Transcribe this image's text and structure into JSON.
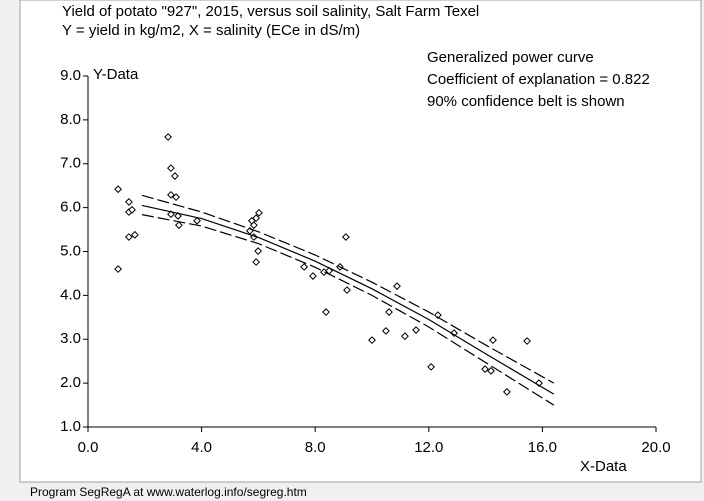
{
  "chart_data": {
    "type": "scatter",
    "title": "Yield of potato \"927\", 2015, versus soil salinity, Salt Farm Texel",
    "subtitle": "Y = yield in kg/m2,  X = salinity (ECe in dS/m)",
    "annotations": [
      "Generalized power curve",
      "Coefficient of explanation = 0.822",
      "90% confidence belt is shown"
    ],
    "x_label": "X-Data",
    "y_label": "Y-Data",
    "footer": "Program SegRegA at www.waterlog.info/segreg.htm",
    "xlim": [
      0,
      20
    ],
    "ylim": [
      1,
      9
    ],
    "xticks": [
      {
        "value": 0,
        "label": "0.0"
      },
      {
        "value": 4,
        "label": "4.0"
      },
      {
        "value": 8,
        "label": "8.0"
      },
      {
        "value": 12,
        "label": "12.0"
      },
      {
        "value": 16,
        "label": "16.0"
      },
      {
        "value": 20,
        "label": "20.0"
      }
    ],
    "yticks": [
      {
        "value": 1,
        "label": "1.0"
      },
      {
        "value": 2,
        "label": "2.0"
      },
      {
        "value": 3,
        "label": "3.0"
      },
      {
        "value": 4,
        "label": "4.0"
      },
      {
        "value": 5,
        "label": "5.0"
      },
      {
        "value": 6,
        "label": "6.0"
      },
      {
        "value": 7,
        "label": "7.0"
      },
      {
        "value": 8,
        "label": "8.0"
      },
      {
        "value": 9,
        "label": "9.0"
      }
    ],
    "color": "#000000",
    "points": {
      "x": [
        1.06,
        1.06,
        1.44,
        1.44,
        1.55,
        1.44,
        1.65,
        2.82,
        2.92,
        3.06,
        2.92,
        3.1,
        2.92,
        3.17,
        3.2,
        3.84,
        5.7,
        5.77,
        5.84,
        5.92,
        6.02,
        5.84,
        5.99,
        5.92,
        7.61,
        7.92,
        8.31,
        8.49,
        8.38,
        8.87,
        9.08,
        9.12,
        10.0,
        10.49,
        10.6,
        10.88,
        11.16,
        11.55,
        12.08,
        12.32,
        12.89,
        13.98,
        14.19,
        14.26,
        14.75,
        15.46,
        15.88
      ],
      "y": [
        6.42,
        4.6,
        6.13,
        5.9,
        5.95,
        5.33,
        5.38,
        7.61,
        6.9,
        6.72,
        6.29,
        6.24,
        5.85,
        5.81,
        5.6,
        5.7,
        5.47,
        5.7,
        5.6,
        5.76,
        5.88,
        5.33,
        5.01,
        4.76,
        4.65,
        4.44,
        4.53,
        4.56,
        3.62,
        4.65,
        5.33,
        4.12,
        2.98,
        3.19,
        3.62,
        4.21,
        3.07,
        3.21,
        2.37,
        3.55,
        3.14,
        2.32,
        2.28,
        2.98,
        1.8,
        2.96,
        2.0
      ]
    },
    "fit": {
      "x": [
        1.9,
        4,
        6,
        8,
        10,
        12,
        14,
        16.4
      ],
      "y": [
        6.05,
        5.75,
        5.32,
        4.78,
        4.15,
        3.45,
        2.67,
        1.75
      ],
      "upper": [
        6.28,
        5.9,
        5.45,
        4.92,
        4.3,
        3.62,
        2.87,
        2.0
      ],
      "lower": [
        5.84,
        5.58,
        5.18,
        4.64,
        4.0,
        3.28,
        2.47,
        1.5
      ]
    }
  }
}
